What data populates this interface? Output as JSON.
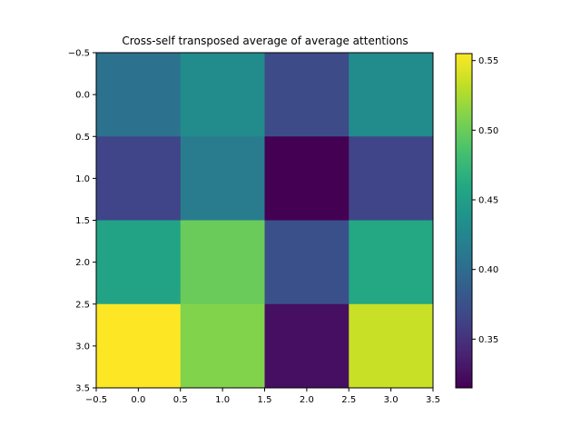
{
  "chart_data": {
    "type": "heatmap",
    "title": "Cross-self transposed average of average attentions",
    "x_ticks": [
      "−0.5",
      "0.0",
      "0.5",
      "1.0",
      "1.5",
      "2.0",
      "2.5",
      "3.0",
      "3.5"
    ],
    "y_ticks": [
      "−0.5",
      "0.0",
      "0.5",
      "1.0",
      "1.5",
      "2.0",
      "2.5",
      "3.0",
      "3.5"
    ],
    "xlim": [
      -0.5,
      3.5
    ],
    "ylim": [
      3.5,
      -0.5
    ],
    "values": [
      [
        0.405,
        0.43,
        0.37,
        0.43
      ],
      [
        0.365,
        0.415,
        0.315,
        0.365
      ],
      [
        0.455,
        0.5,
        0.375,
        0.46
      ],
      [
        0.555,
        0.51,
        0.325,
        0.535
      ]
    ],
    "colorbar": {
      "min": 0.315,
      "max": 0.555,
      "ticks": [
        "0.35",
        "0.40",
        "0.45",
        "0.50",
        "0.55"
      ],
      "tick_values": [
        0.35,
        0.4,
        0.45,
        0.5,
        0.55
      ]
    },
    "colormap": "viridis",
    "grid": false
  }
}
